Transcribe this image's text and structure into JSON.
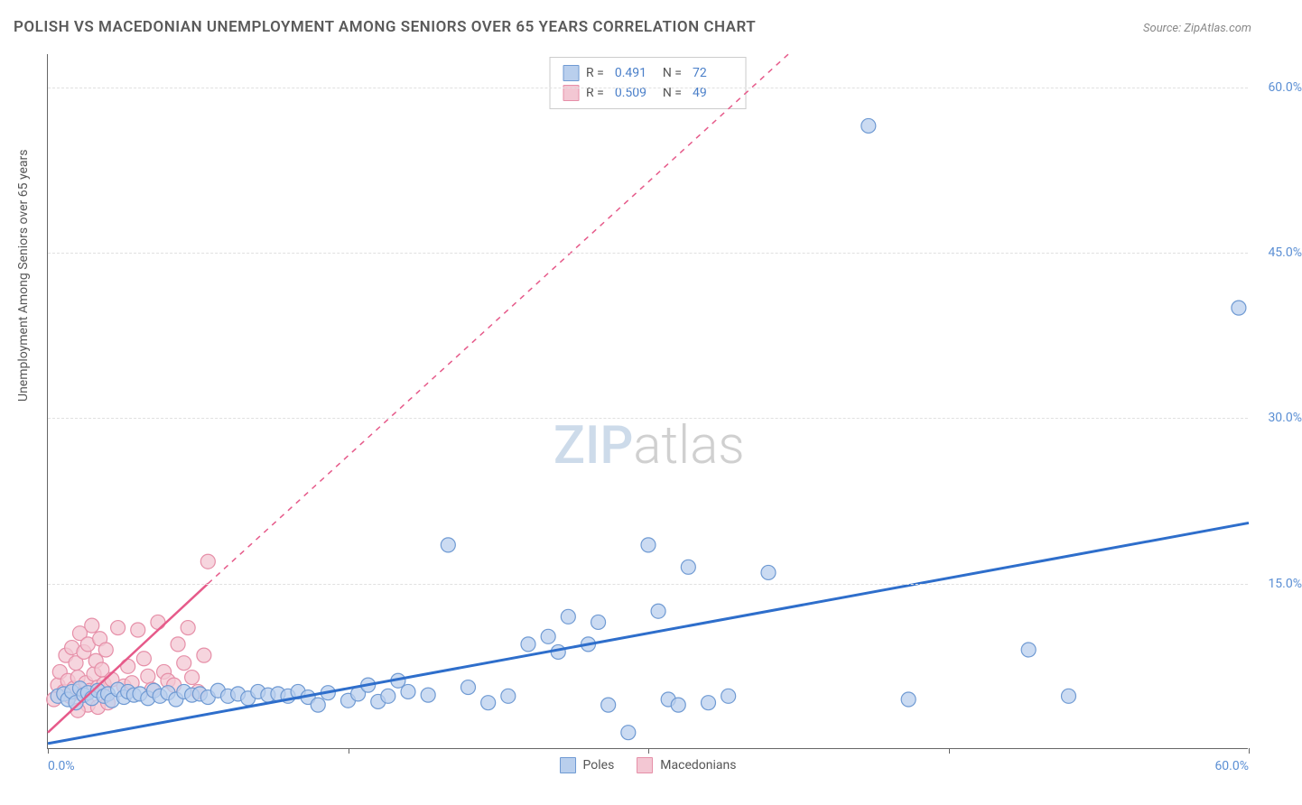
{
  "title": "POLISH VS MACEDONIAN UNEMPLOYMENT AMONG SENIORS OVER 65 YEARS CORRELATION CHART",
  "source": "Source: ZipAtlas.com",
  "y_axis_title": "Unemployment Among Seniors over 65 years",
  "watermark": {
    "zip": "ZIP",
    "atlas": "atlas"
  },
  "colors": {
    "series_blue_fill": "#b9cfed",
    "series_blue_stroke": "#6f9ad3",
    "series_pink_fill": "#f3c7d3",
    "series_pink_stroke": "#e68fa8",
    "line_blue": "#2e6ecb",
    "line_pink": "#e65a8a",
    "grid": "#e0e0e0",
    "axis": "#666666",
    "tick_label": "#5b8fd4",
    "text": "#555555",
    "background": "#ffffff"
  },
  "chart": {
    "type": "scatter",
    "xlim": [
      0,
      60
    ],
    "ylim": [
      0,
      63
    ],
    "x_ticks": [
      0,
      15,
      30,
      45,
      60
    ],
    "x_tick_labels": {
      "0": "0.0%",
      "60": "60.0%"
    },
    "y_ticks": [
      15,
      30,
      45,
      60
    ],
    "y_tick_labels": {
      "15": "15.0%",
      "30": "30.0%",
      "45": "45.0%",
      "60": "60.0%"
    },
    "marker_radius": 8,
    "marker_opacity": 0.75,
    "line_width_blue": 3,
    "line_width_pink": 2.5
  },
  "legend_top": [
    {
      "swatch": "blue",
      "r_label": "R =",
      "r_value": "0.491",
      "n_label": "N =",
      "n_value": "72"
    },
    {
      "swatch": "pink",
      "r_label": "R =",
      "r_value": "0.509",
      "n_label": "N =",
      "n_value": "49"
    }
  ],
  "legend_bottom": [
    {
      "swatch": "blue",
      "label": "Poles"
    },
    {
      "swatch": "pink",
      "label": "Macedonians"
    }
  ],
  "trend_lines": {
    "blue": {
      "x1": 0,
      "y1": 0.5,
      "x2": 60,
      "y2": 20.5
    },
    "pink_solid": {
      "x1": 0,
      "y1": 1.5,
      "x2": 8,
      "y2": 15.0
    },
    "pink_dashed": {
      "x1": 8,
      "y1": 15.0,
      "x2": 37,
      "y2": 63.0
    }
  },
  "series": {
    "blue": [
      [
        0.5,
        4.8
      ],
      [
        0.8,
        5.0
      ],
      [
        1.0,
        4.5
      ],
      [
        1.2,
        5.2
      ],
      [
        1.4,
        4.2
      ],
      [
        1.6,
        5.5
      ],
      [
        1.8,
        4.9
      ],
      [
        2.0,
        5.1
      ],
      [
        2.2,
        4.6
      ],
      [
        2.5,
        5.3
      ],
      [
        2.8,
        4.8
      ],
      [
        3.0,
        5.0
      ],
      [
        3.2,
        4.4
      ],
      [
        3.5,
        5.4
      ],
      [
        3.8,
        4.7
      ],
      [
        4.0,
        5.2
      ],
      [
        4.3,
        4.9
      ],
      [
        4.6,
        5.0
      ],
      [
        5.0,
        4.6
      ],
      [
        5.3,
        5.3
      ],
      [
        5.6,
        4.8
      ],
      [
        6.0,
        5.1
      ],
      [
        6.4,
        4.5
      ],
      [
        6.8,
        5.2
      ],
      [
        7.2,
        4.9
      ],
      [
        7.6,
        5.0
      ],
      [
        8.0,
        4.7
      ],
      [
        8.5,
        5.3
      ],
      [
        9.0,
        4.8
      ],
      [
        9.5,
        5.0
      ],
      [
        10.0,
        4.6
      ],
      [
        10.5,
        5.2
      ],
      [
        11.0,
        4.9
      ],
      [
        11.5,
        5.0
      ],
      [
        12.0,
        4.8
      ],
      [
        12.5,
        5.2
      ],
      [
        13.0,
        4.7
      ],
      [
        13.5,
        4.0
      ],
      [
        14.0,
        5.1
      ],
      [
        15.0,
        4.4
      ],
      [
        15.5,
        5.0
      ],
      [
        16.0,
        5.8
      ],
      [
        16.5,
        4.3
      ],
      [
        17.0,
        4.8
      ],
      [
        17.5,
        6.2
      ],
      [
        18.0,
        5.2
      ],
      [
        19.0,
        4.9
      ],
      [
        20.0,
        18.5
      ],
      [
        21.0,
        5.6
      ],
      [
        22.0,
        4.2
      ],
      [
        23.0,
        4.8
      ],
      [
        24.0,
        9.5
      ],
      [
        25.0,
        10.2
      ],
      [
        25.5,
        8.8
      ],
      [
        26.0,
        12.0
      ],
      [
        27.0,
        9.5
      ],
      [
        27.5,
        11.5
      ],
      [
        28.0,
        4.0
      ],
      [
        29.0,
        1.5
      ],
      [
        30.0,
        18.5
      ],
      [
        30.5,
        12.5
      ],
      [
        31.0,
        4.5
      ],
      [
        31.5,
        4.0
      ],
      [
        32.0,
        16.5
      ],
      [
        33.0,
        4.2
      ],
      [
        34.0,
        4.8
      ],
      [
        36.0,
        16.0
      ],
      [
        41.0,
        56.5
      ],
      [
        43.0,
        4.5
      ],
      [
        49.0,
        9.0
      ],
      [
        51.0,
        4.8
      ],
      [
        59.5,
        40.0
      ]
    ],
    "pink": [
      [
        0.3,
        4.5
      ],
      [
        0.5,
        5.8
      ],
      [
        0.6,
        7.0
      ],
      [
        0.8,
        5.2
      ],
      [
        0.9,
        8.5
      ],
      [
        1.0,
        6.2
      ],
      [
        1.1,
        4.8
      ],
      [
        1.2,
        9.2
      ],
      [
        1.3,
        5.5
      ],
      [
        1.4,
        7.8
      ],
      [
        1.5,
        6.5
      ],
      [
        1.6,
        10.5
      ],
      [
        1.7,
        5.0
      ],
      [
        1.8,
        8.8
      ],
      [
        1.9,
        6.0
      ],
      [
        2.0,
        9.5
      ],
      [
        2.1,
        5.3
      ],
      [
        2.2,
        11.2
      ],
      [
        2.3,
        6.8
      ],
      [
        2.4,
        8.0
      ],
      [
        2.5,
        5.6
      ],
      [
        2.6,
        10.0
      ],
      [
        2.7,
        7.2
      ],
      [
        2.8,
        5.9
      ],
      [
        2.9,
        9.0
      ],
      [
        3.2,
        6.3
      ],
      [
        3.5,
        11.0
      ],
      [
        3.8,
        5.7
      ],
      [
        4.0,
        7.5
      ],
      [
        4.2,
        6.0
      ],
      [
        4.5,
        10.8
      ],
      [
        4.8,
        8.2
      ],
      [
        5.0,
        6.6
      ],
      [
        5.2,
        5.4
      ],
      [
        5.5,
        11.5
      ],
      [
        5.8,
        7.0
      ],
      [
        6.0,
        6.2
      ],
      [
        6.3,
        5.8
      ],
      [
        6.5,
        9.5
      ],
      [
        6.8,
        7.8
      ],
      [
        7.0,
        11.0
      ],
      [
        7.2,
        6.5
      ],
      [
        7.5,
        5.2
      ],
      [
        7.8,
        8.5
      ],
      [
        8.0,
        17.0
      ],
      [
        2.0,
        4.0
      ],
      [
        2.5,
        3.8
      ],
      [
        1.5,
        3.5
      ],
      [
        3.0,
        4.2
      ]
    ]
  }
}
